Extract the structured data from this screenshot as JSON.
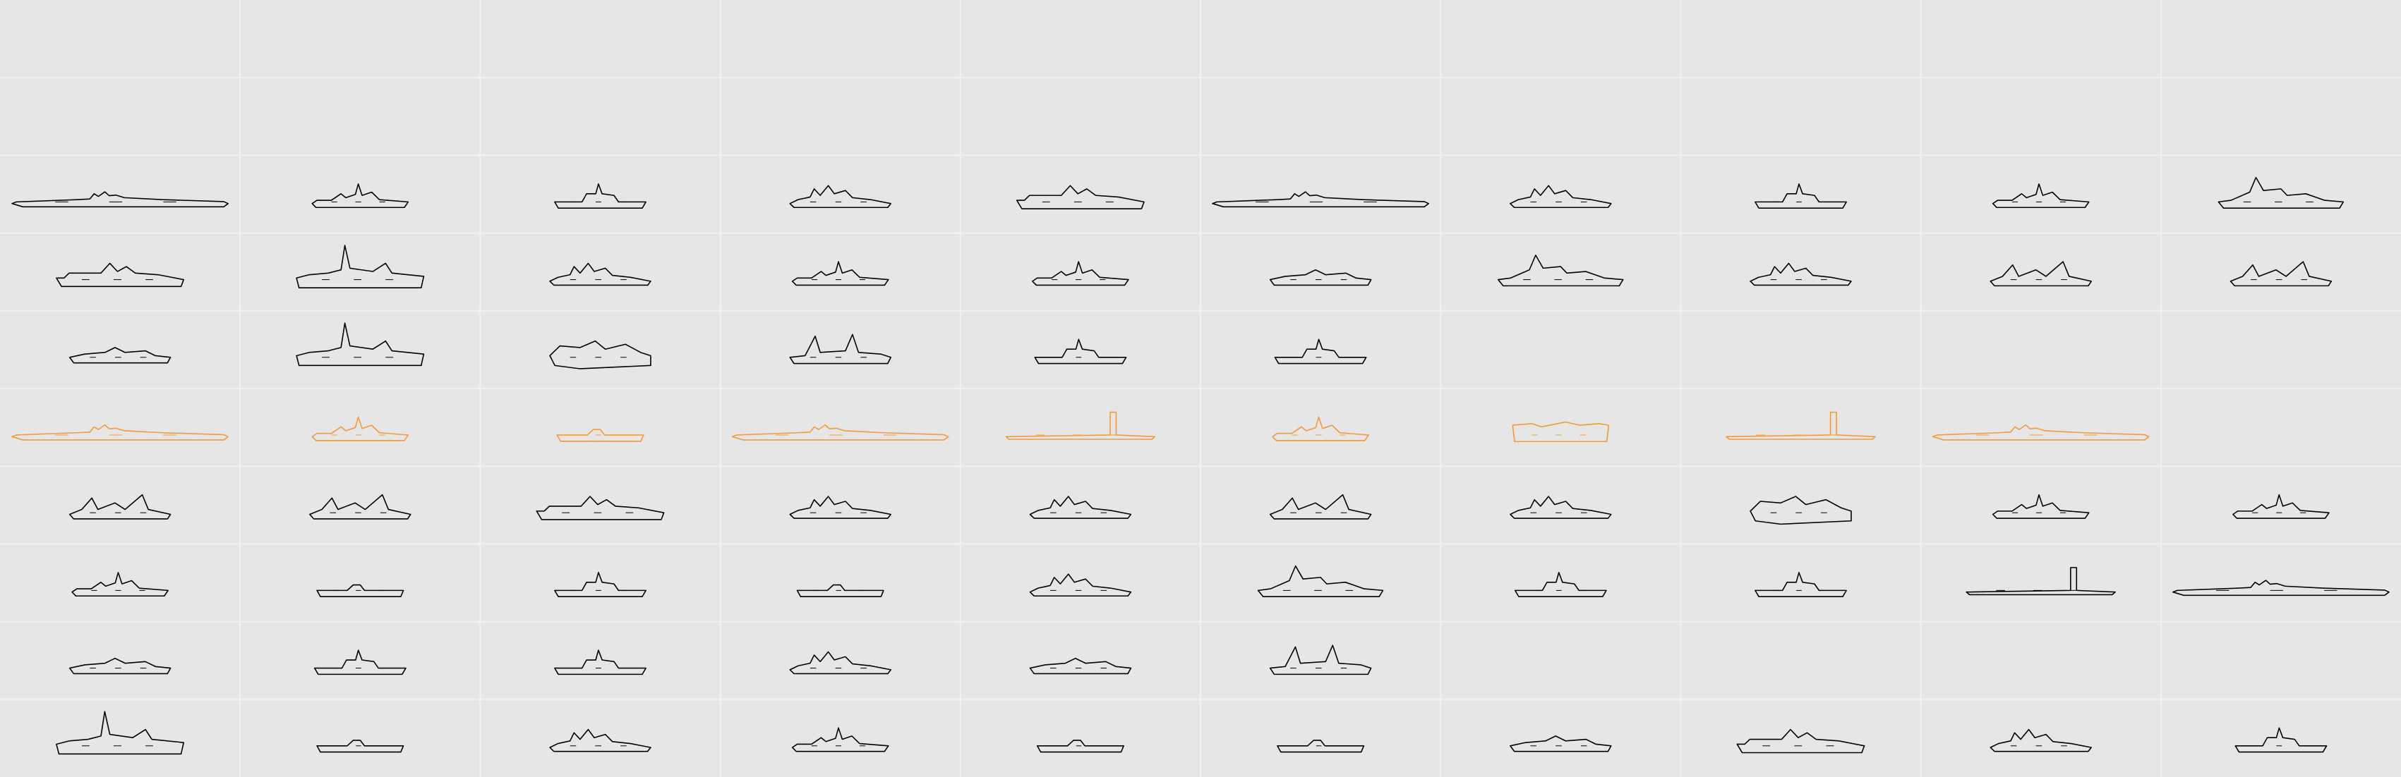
{
  "grid": {
    "columns": 10,
    "rows": 10,
    "background": "#e6e6e6",
    "line_color": "#f2f2f2",
    "outline_color": "#000000",
    "highlight_color": "#f39a3c"
  },
  "rows": [
    [],
    [],
    [
      {
        "profile": "carrier-long",
        "color": "dark"
      },
      {
        "profile": "destroyer",
        "color": "dark"
      },
      {
        "profile": "patrol",
        "color": "dark"
      },
      {
        "profile": "cruiser",
        "color": "dark"
      },
      {
        "profile": "frigate-bow",
        "color": "dark"
      },
      {
        "profile": "carrier-long",
        "color": "dark"
      },
      {
        "profile": "cruiser",
        "color": "dark"
      },
      {
        "profile": "patrol",
        "color": "dark"
      },
      {
        "profile": "destroyer",
        "color": "dark"
      },
      {
        "profile": "battleship",
        "color": "dark"
      }
    ],
    [
      {
        "profile": "frigate-bow",
        "color": "dark"
      },
      {
        "profile": "mast-ship",
        "color": "dark"
      },
      {
        "profile": "cruiser",
        "color": "dark"
      },
      {
        "profile": "destroyer",
        "color": "dark"
      },
      {
        "profile": "destroyer",
        "color": "dark"
      },
      {
        "profile": "low-ship",
        "color": "dark"
      },
      {
        "profile": "battleship",
        "color": "dark"
      },
      {
        "profile": "cruiser",
        "color": "dark"
      },
      {
        "profile": "twin-stack",
        "color": "dark"
      },
      {
        "profile": "twin-stack",
        "color": "dark"
      }
    ],
    [
      {
        "profile": "low-ship",
        "color": "dark"
      },
      {
        "profile": "mast-ship",
        "color": "dark"
      },
      {
        "profile": "hover",
        "color": "dark"
      },
      {
        "profile": "heavy-bridge",
        "color": "dark"
      },
      {
        "profile": "patrol",
        "color": "dark"
      },
      {
        "profile": "patrol",
        "color": "dark"
      }
    ],
    [
      {
        "profile": "carrier-long",
        "color": "highlight"
      },
      {
        "profile": "destroyer",
        "color": "highlight"
      },
      {
        "profile": "flat",
        "color": "highlight"
      },
      {
        "profile": "carrier-long",
        "color": "highlight"
      },
      {
        "profile": "submarine",
        "color": "highlight"
      },
      {
        "profile": "destroyer",
        "color": "highlight"
      },
      {
        "profile": "boxy",
        "color": "highlight"
      },
      {
        "profile": "submarine",
        "color": "highlight"
      },
      {
        "profile": "carrier-long",
        "color": "highlight"
      }
    ],
    [
      {
        "profile": "twin-stack",
        "color": "dark"
      },
      {
        "profile": "twin-stack",
        "color": "dark"
      },
      {
        "profile": "frigate-bow",
        "color": "dark"
      },
      {
        "profile": "cruiser",
        "color": "dark"
      },
      {
        "profile": "cruiser",
        "color": "dark"
      },
      {
        "profile": "twin-stack",
        "color": "dark"
      },
      {
        "profile": "cruiser",
        "color": "dark"
      },
      {
        "profile": "hover",
        "color": "dark"
      },
      {
        "profile": "destroyer",
        "color": "dark"
      },
      {
        "profile": "destroyer",
        "color": "dark"
      }
    ],
    [
      {
        "profile": "destroyer",
        "color": "dark"
      },
      {
        "profile": "flat",
        "color": "dark"
      },
      {
        "profile": "patrol",
        "color": "dark"
      },
      {
        "profile": "flat",
        "color": "dark"
      },
      {
        "profile": "cruiser",
        "color": "dark"
      },
      {
        "profile": "battleship",
        "color": "dark"
      },
      {
        "profile": "patrol",
        "color": "dark"
      },
      {
        "profile": "patrol",
        "color": "dark"
      },
      {
        "profile": "submarine",
        "color": "dark"
      },
      {
        "profile": "carrier-long",
        "color": "dark"
      }
    ],
    [
      {
        "profile": "low-ship",
        "color": "dark"
      },
      {
        "profile": "patrol",
        "color": "dark"
      },
      {
        "profile": "patrol",
        "color": "dark"
      },
      {
        "profile": "cruiser",
        "color": "dark"
      },
      {
        "profile": "low-ship",
        "color": "dark"
      },
      {
        "profile": "heavy-bridge",
        "color": "dark"
      }
    ],
    [
      {
        "profile": "mast-ship",
        "color": "dark"
      },
      {
        "profile": "flat",
        "color": "dark"
      },
      {
        "profile": "cruiser",
        "color": "dark"
      },
      {
        "profile": "destroyer",
        "color": "dark"
      },
      {
        "profile": "flat",
        "color": "dark"
      },
      {
        "profile": "flat",
        "color": "dark"
      },
      {
        "profile": "low-ship",
        "color": "dark"
      },
      {
        "profile": "frigate-bow",
        "color": "dark"
      },
      {
        "profile": "cruiser",
        "color": "dark"
      },
      {
        "profile": "patrol",
        "color": "dark"
      }
    ]
  ]
}
